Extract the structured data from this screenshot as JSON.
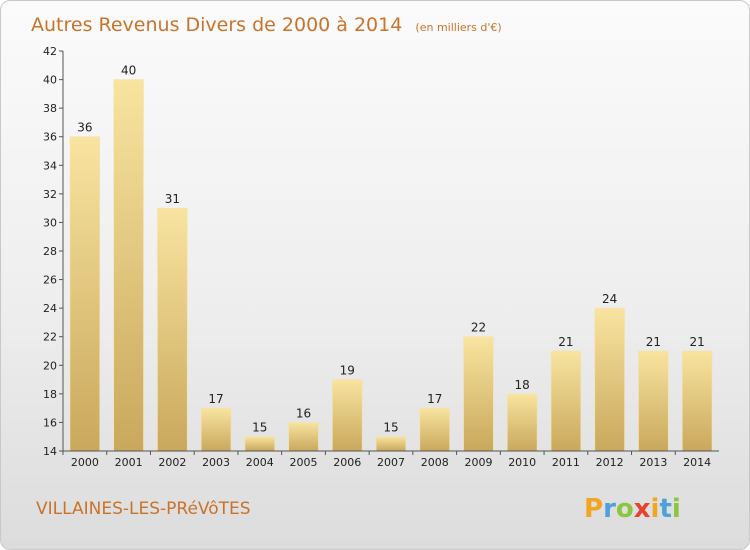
{
  "title": "Autres Revenus Divers de 2000 à 2014",
  "unit": "(en milliers d'€)",
  "commune": "VILLAINES-LES-PRéVôTES",
  "logo": {
    "letters": [
      "P",
      "r",
      "o",
      "x",
      "i",
      "t",
      "i"
    ],
    "colors": [
      "#f2a51f",
      "#4f9fd8",
      "#8cc63f",
      "#e8412c",
      "#f2a51f",
      "#4f9fd8",
      "#8cc63f"
    ]
  },
  "colors": {
    "bar_top": "#f8e4a0",
    "bar_bottom": "#c9a85c",
    "title": "#c9732a"
  },
  "chart_data": {
    "type": "bar",
    "categories": [
      "2000",
      "2001",
      "2002",
      "2003",
      "2004",
      "2005",
      "2006",
      "2007",
      "2008",
      "2009",
      "2010",
      "2011",
      "2012",
      "2013",
      "2014"
    ],
    "values": [
      36,
      40,
      31,
      17,
      15,
      16,
      19,
      15,
      17,
      22,
      18,
      21,
      24,
      21,
      21
    ],
    "ylim": [
      14,
      42
    ],
    "yticks": [
      14,
      16,
      18,
      20,
      22,
      24,
      26,
      28,
      30,
      32,
      34,
      36,
      38,
      40,
      42
    ],
    "grid": false,
    "legend": "none"
  }
}
